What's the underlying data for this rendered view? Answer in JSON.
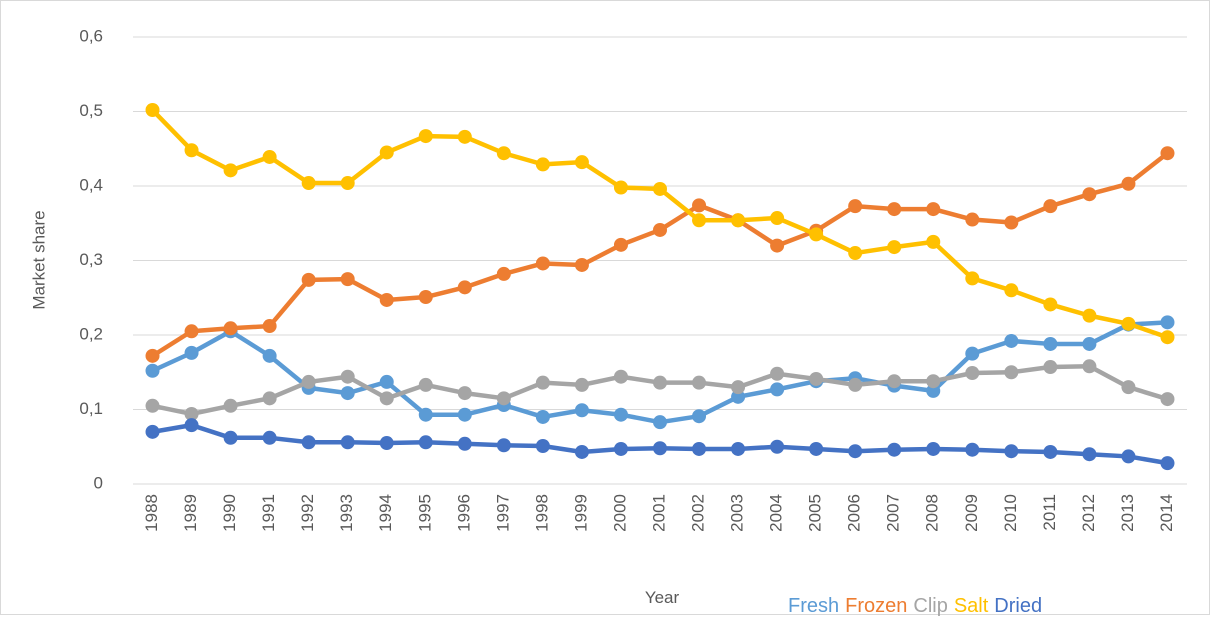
{
  "chart_data": {
    "type": "line",
    "y_label": "Market share",
    "x_label": "Year",
    "categories": [
      "1988",
      "1989",
      "1990",
      "1991",
      "1992",
      "1993",
      "1994",
      "1995",
      "1996",
      "1997",
      "1998",
      "1999",
      "2000",
      "2001",
      "2002",
      "2003",
      "2004",
      "2005",
      "2006",
      "2007",
      "2008",
      "2009",
      "2010",
      "2011",
      "2012",
      "2013",
      "2014"
    ],
    "series": [
      {
        "name": "Fresh",
        "color": "#5b9bd5",
        "values": [
          0.152,
          0.176,
          0.205,
          0.172,
          0.129,
          0.122,
          0.137,
          0.093,
          0.093,
          0.106,
          0.09,
          0.099,
          0.093,
          0.083,
          0.091,
          0.117,
          0.127,
          0.138,
          0.142,
          0.132,
          0.125,
          0.175,
          0.192,
          0.188,
          0.188,
          0.214,
          0.217
        ]
      },
      {
        "name": "Frozen",
        "color": "#ed7d31",
        "values": [
          0.172,
          0.205,
          0.209,
          0.212,
          0.274,
          0.275,
          0.247,
          0.251,
          0.264,
          0.282,
          0.296,
          0.294,
          0.321,
          0.341,
          0.374,
          0.354,
          0.32,
          0.34,
          0.373,
          0.369,
          0.369,
          0.355,
          0.351,
          0.373,
          0.389,
          0.403,
          0.444
        ]
      },
      {
        "name": "Clip",
        "color": "#a5a5a5",
        "values": [
          0.105,
          0.094,
          0.105,
          0.115,
          0.137,
          0.144,
          0.115,
          0.133,
          0.122,
          0.115,
          0.136,
          0.133,
          0.144,
          0.136,
          0.136,
          0.13,
          0.148,
          0.141,
          0.133,
          0.138,
          0.138,
          0.149,
          0.15,
          0.157,
          0.158,
          0.13,
          0.114
        ]
      },
      {
        "name": "Salt",
        "color": "#ffc000",
        "values": [
          0.502,
          0.448,
          0.421,
          0.439,
          0.404,
          0.404,
          0.445,
          0.467,
          0.466,
          0.444,
          0.429,
          0.432,
          0.398,
          0.396,
          0.354,
          0.354,
          0.357,
          0.335,
          0.31,
          0.318,
          0.325,
          0.276,
          0.26,
          0.241,
          0.226,
          0.215,
          0.197
        ]
      },
      {
        "name": "Dried",
        "color": "#4472c4",
        "values": [
          0.07,
          0.079,
          0.062,
          0.062,
          0.056,
          0.056,
          0.055,
          0.056,
          0.054,
          0.052,
          0.051,
          0.043,
          0.047,
          0.048,
          0.047,
          0.047,
          0.05,
          0.047,
          0.044,
          0.046,
          0.047,
          0.046,
          0.044,
          0.043,
          0.04,
          0.037,
          0.028
        ]
      }
    ],
    "ylim": [
      0,
      0.6
    ],
    "yticks": [
      0,
      {
        "value": 0.1,
        "label": "0,1"
      },
      {
        "value": 0.2,
        "label": "0,2"
      },
      {
        "value": 0.3,
        "label": "0,3"
      },
      {
        "value": 0.4,
        "label": "0,4"
      },
      {
        "value": 0.5,
        "label": "0,5"
      },
      {
        "value": 0.6,
        "label": "0,6"
      }
    ],
    "grid": true
  }
}
